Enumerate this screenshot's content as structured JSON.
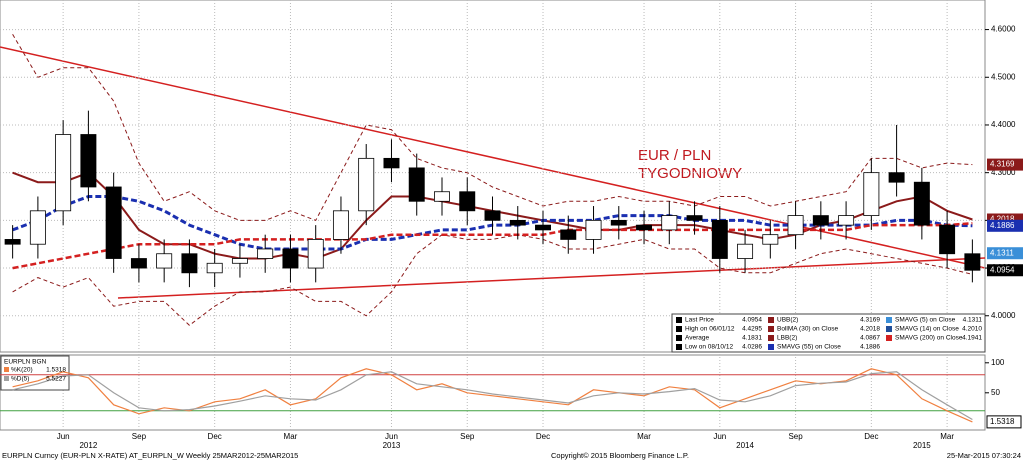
{
  "chart_data": {
    "type": "candlestick",
    "annotation": [
      "EUR / PLN",
      "TYGODNIOWY"
    ],
    "categories": [
      null,
      null,
      "Jun",
      null,
      null,
      "Sep",
      null,
      null,
      "Dec",
      null,
      null,
      "Mar",
      null,
      null,
      null,
      "Jun",
      null,
      null,
      "Sep",
      null,
      null,
      "Dec",
      null,
      null,
      null,
      "Mar",
      null,
      null,
      "Jun",
      null,
      null,
      "Sep",
      null,
      null,
      "Dec",
      null,
      null,
      "Mar",
      null
    ],
    "year_labels": [
      null,
      null,
      null,
      "2012",
      null,
      null,
      null,
      null,
      null,
      null,
      null,
      null,
      null,
      null,
      null,
      "2013",
      null,
      null,
      null,
      null,
      null,
      null,
      null,
      null,
      null,
      null,
      null,
      null,
      null,
      "2014",
      null,
      null,
      null,
      null,
      null,
      null,
      "2015",
      null,
      null
    ],
    "open": [
      4.16,
      4.15,
      4.22,
      4.38,
      4.27,
      4.12,
      4.1,
      4.13,
      4.09,
      4.11,
      4.12,
      4.14,
      4.1,
      4.16,
      4.22,
      4.33,
      4.31,
      4.24,
      4.26,
      4.22,
      4.2,
      4.19,
      4.18,
      4.16,
      4.2,
      4.19,
      4.18,
      4.21,
      4.2,
      4.12,
      4.15,
      4.17,
      4.21,
      4.19,
      4.21,
      4.3,
      4.28,
      4.19,
      4.13
    ],
    "high": [
      4.19,
      4.25,
      4.41,
      4.43,
      4.3,
      4.15,
      4.16,
      4.16,
      4.14,
      4.15,
      4.17,
      4.17,
      4.19,
      4.25,
      4.36,
      4.37,
      4.34,
      4.29,
      4.29,
      4.25,
      4.23,
      4.22,
      4.21,
      4.23,
      4.23,
      4.22,
      4.24,
      4.24,
      4.23,
      4.18,
      4.2,
      4.24,
      4.24,
      4.24,
      4.33,
      4.4,
      4.31,
      4.22,
      4.16
    ],
    "low": [
      4.12,
      4.12,
      4.19,
      4.24,
      4.09,
      4.07,
      4.07,
      4.06,
      4.06,
      4.08,
      4.09,
      4.07,
      4.07,
      4.13,
      4.19,
      4.28,
      4.21,
      4.21,
      4.19,
      4.17,
      4.16,
      4.15,
      4.13,
      4.13,
      4.16,
      4.15,
      4.15,
      4.17,
      4.09,
      4.09,
      4.12,
      4.14,
      4.16,
      4.16,
      4.18,
      4.25,
      4.16,
      4.1,
      4.07
    ],
    "close": [
      4.15,
      4.22,
      4.38,
      4.27,
      4.12,
      4.1,
      4.13,
      4.09,
      4.11,
      4.12,
      4.14,
      4.1,
      4.16,
      4.22,
      4.33,
      4.31,
      4.24,
      4.26,
      4.22,
      4.2,
      4.19,
      4.18,
      4.16,
      4.2,
      4.19,
      4.18,
      4.21,
      4.2,
      4.12,
      4.15,
      4.17,
      4.21,
      4.19,
      4.21,
      4.3,
      4.28,
      4.19,
      4.13,
      4.0954
    ],
    "up_color": "#ffffff",
    "down_color": "#000000",
    "stats": [
      {
        "label": "Last Price",
        "value": 4.0954
      },
      {
        "label": "High on 06/01/12",
        "value": 4.4295
      },
      {
        "label": "Average",
        "value": 4.1831
      },
      {
        "label": "Low on 08/10/12",
        "value": 4.0286
      }
    ],
    "series": [
      {
        "name": "UBB(2)",
        "color": "#8b1a1a",
        "dash": "4,3",
        "width": 1,
        "last": 4.3169,
        "tag": true,
        "values": [
          4.59,
          4.5,
          4.52,
          4.52,
          4.45,
          4.32,
          4.24,
          4.26,
          4.22,
          4.2,
          4.2,
          4.22,
          4.2,
          4.3,
          4.4,
          4.39,
          4.33,
          4.31,
          4.3,
          4.27,
          4.25,
          4.23,
          4.24,
          4.24,
          4.25,
          4.24,
          4.24,
          4.23,
          4.25,
          4.25,
          4.23,
          4.24,
          4.25,
          4.26,
          4.33,
          4.33,
          4.31,
          4.32,
          4.3169
        ]
      },
      {
        "name": "BollMA (30) on Close",
        "color": "#8b1a1a",
        "width": 2,
        "last": 4.2018,
        "tag": true,
        "values": [
          4.3,
          4.28,
          4.28,
          4.3,
          4.25,
          4.18,
          4.15,
          4.15,
          4.13,
          4.12,
          4.12,
          4.13,
          4.12,
          4.14,
          4.2,
          4.25,
          4.25,
          4.24,
          4.23,
          4.22,
          4.21,
          4.2,
          4.19,
          4.18,
          4.18,
          4.19,
          4.19,
          4.19,
          4.18,
          4.17,
          4.16,
          4.17,
          4.19,
          4.2,
          4.22,
          4.24,
          4.25,
          4.22,
          4.2018
        ]
      },
      {
        "name": "LBB(2)",
        "color": "#8b1a1a",
        "dash": "4,3",
        "width": 1,
        "last": 4.0867,
        "values": [
          4.05,
          4.08,
          4.06,
          4.08,
          4.02,
          4.03,
          4.03,
          3.98,
          4.02,
          4.05,
          4.05,
          4.06,
          4.03,
          4.03,
          4.0,
          4.05,
          4.13,
          4.17,
          4.16,
          4.16,
          4.17,
          4.16,
          4.14,
          4.14,
          4.15,
          4.16,
          4.14,
          4.14,
          4.1,
          4.09,
          4.09,
          4.11,
          4.13,
          4.14,
          4.13,
          4.12,
          4.11,
          4.1,
          4.0867
        ]
      },
      {
        "name": "SMAVG (55) on Close",
        "color": "#1a2fb0",
        "dash": "6,3",
        "width": 3,
        "last": 4.1886,
        "tag": true,
        "values": [
          4.18,
          4.2,
          4.23,
          4.25,
          4.25,
          4.24,
          4.22,
          4.19,
          4.17,
          4.15,
          4.14,
          4.14,
          4.14,
          4.14,
          4.16,
          4.16,
          4.17,
          4.18,
          4.18,
          4.19,
          4.19,
          4.2,
          4.2,
          4.2,
          4.21,
          4.21,
          4.21,
          4.2,
          4.2,
          4.2,
          4.19,
          4.19,
          4.19,
          4.19,
          4.19,
          4.2,
          4.2,
          4.19,
          4.1886
        ]
      },
      {
        "name": "SMAVG (5) on Close",
        "color": "#3a8fd8",
        "last": 4.1311,
        "tag": true
      },
      {
        "name": "SMAVG (14) on Close",
        "color": "#1f4e9a",
        "last": 4.201,
        "last_label": "4.2010"
      },
      {
        "name": "SMAVG (200) on Close",
        "color": "#d42020",
        "dash": "6,3",
        "width": 2.5,
        "last": 4.1941,
        "values": [
          4.1,
          4.11,
          4.12,
          4.13,
          4.14,
          4.15,
          4.15,
          4.15,
          4.15,
          4.16,
          4.16,
          4.16,
          4.16,
          4.16,
          4.16,
          4.17,
          4.17,
          4.17,
          4.17,
          4.17,
          4.17,
          4.17,
          4.18,
          4.18,
          4.18,
          4.18,
          4.18,
          4.18,
          4.18,
          4.18,
          4.18,
          4.18,
          4.18,
          4.18,
          4.19,
          4.19,
          4.19,
          4.19,
          4.1941
        ]
      }
    ],
    "last_tag_color": "#000000",
    "ylim": [
      3.924,
      4.662
    ],
    "yticks": [
      {
        "value": 4.0,
        "label": "4.0000"
      },
      {
        "value": 4.1,
        "label": "4.1000"
      },
      {
        "value": 4.2,
        "label": "4.2000"
      },
      {
        "value": 4.3,
        "label": "4.3000"
      },
      {
        "value": 4.4,
        "label": "4.4000"
      },
      {
        "value": 4.5,
        "label": "4.5000"
      },
      {
        "value": 4.6,
        "label": "4.6000"
      }
    ],
    "lower": {
      "type": "line",
      "title": "EURPLN BGN",
      "ylim": [
        -12,
        113
      ],
      "yticks": [
        50,
        100
      ],
      "hlines": [
        {
          "value": 80,
          "color": "#d04040"
        },
        {
          "value": 20,
          "color": "#40a040"
        }
      ],
      "series": [
        {
          "name": "%K(20)",
          "color": "#f08040",
          "last": 1.5318,
          "values": [
            60,
            70,
            85,
            75,
            30,
            15,
            25,
            20,
            35,
            40,
            55,
            30,
            40,
            75,
            90,
            80,
            55,
            65,
            50,
            45,
            40,
            35,
            30,
            55,
            50,
            45,
            60,
            55,
            25,
            40,
            55,
            70,
            65,
            70,
            90,
            80,
            40,
            20,
            1.5318
          ]
        },
        {
          "name": "%D(5)",
          "color": "#a0a0a0",
          "last": 5.5227,
          "values": [
            55,
            65,
            78,
            80,
            50,
            25,
            20,
            22,
            28,
            36,
            45,
            40,
            38,
            55,
            80,
            85,
            65,
            60,
            55,
            48,
            43,
            38,
            33,
            45,
            50,
            48,
            52,
            57,
            38,
            35,
            45,
            62,
            66,
            68,
            82,
            85,
            55,
            30,
            5.5227
          ]
        }
      ]
    },
    "footer": [
      "EURPLN Curncy (EUR-PLN X-RATE) AT_EURPLN_W  Weekly 25MAR2012-25MAR2015",
      "Copyright© 2015 Bloomberg Finance L.P.",
      "25-Mar-2015 07:30:24"
    ]
  }
}
